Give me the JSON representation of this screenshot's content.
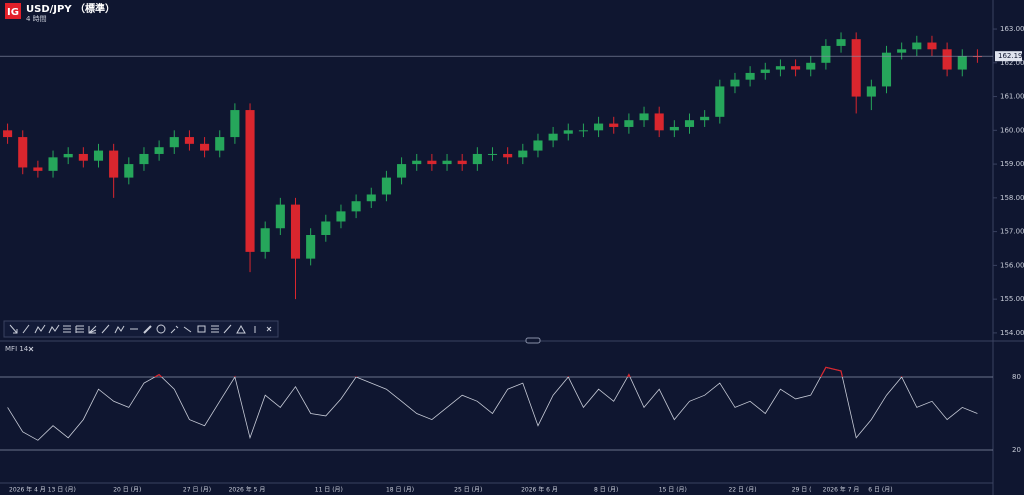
{
  "logo": "IG",
  "chart_data": [
    {
      "type": "candlestick",
      "title": "USD/JPY （標準）",
      "subtitle": "4 時間",
      "colors": {
        "up": "#26a65b",
        "down": "#d9262e"
      },
      "open": [
        160.0,
        159.8,
        158.9,
        158.8,
        159.2,
        159.3,
        159.1,
        159.4,
        158.6,
        159.0,
        159.3,
        159.5,
        159.8,
        159.6,
        159.4,
        159.8,
        160.6,
        156.4,
        157.1,
        157.8,
        156.2,
        156.9,
        157.3,
        157.6,
        157.9,
        158.1,
        158.6,
        159.0,
        159.1,
        159.0,
        159.1,
        159.0,
        159.3,
        159.3,
        159.2,
        159.4,
        159.7,
        159.9,
        160.0,
        160.0,
        160.2,
        160.1,
        160.3,
        160.5,
        160.0,
        160.1,
        160.3,
        160.4,
        161.3,
        161.5,
        161.7,
        161.8,
        161.9,
        161.8,
        162.0,
        162.5,
        162.7,
        161.0,
        161.3,
        162.3,
        162.4,
        162.6,
        162.4,
        161.8,
        162.2
      ],
      "high": [
        160.2,
        160.0,
        159.1,
        159.4,
        159.5,
        159.5,
        159.6,
        159.6,
        159.2,
        159.5,
        159.7,
        160.0,
        160.0,
        159.8,
        160.0,
        160.8,
        160.8,
        157.3,
        158.0,
        158.0,
        157.1,
        157.5,
        157.8,
        158.1,
        158.3,
        158.8,
        159.2,
        159.3,
        159.3,
        159.3,
        159.3,
        159.5,
        159.5,
        159.5,
        159.6,
        159.9,
        160.1,
        160.2,
        160.2,
        160.4,
        160.4,
        160.5,
        160.7,
        160.7,
        160.3,
        160.5,
        160.6,
        161.5,
        161.7,
        161.9,
        162.0,
        162.1,
        162.1,
        162.2,
        162.7,
        162.9,
        162.9,
        161.5,
        162.5,
        162.6,
        162.8,
        162.8,
        162.6,
        162.4,
        162.4
      ],
      "low": [
        159.6,
        158.7,
        158.6,
        158.6,
        159.0,
        158.9,
        158.9,
        158.0,
        158.4,
        158.8,
        159.1,
        159.3,
        159.4,
        159.2,
        159.2,
        159.6,
        155.8,
        156.2,
        156.9,
        155.0,
        156.0,
        156.7,
        157.1,
        157.4,
        157.7,
        157.9,
        158.4,
        158.8,
        158.8,
        158.8,
        158.8,
        158.8,
        159.1,
        159.0,
        159.0,
        159.2,
        159.5,
        159.7,
        159.8,
        159.8,
        159.9,
        159.9,
        160.1,
        159.8,
        159.8,
        159.9,
        160.1,
        160.2,
        161.1,
        161.3,
        161.5,
        161.6,
        161.6,
        161.6,
        161.8,
        162.3,
        160.5,
        160.6,
        161.1,
        162.1,
        162.2,
        162.2,
        161.6,
        161.6,
        162.0
      ],
      "close": [
        159.8,
        158.9,
        158.8,
        159.2,
        159.3,
        159.1,
        159.4,
        158.6,
        159.0,
        159.3,
        159.5,
        159.8,
        159.6,
        159.4,
        159.8,
        160.6,
        156.4,
        157.1,
        157.8,
        156.2,
        156.9,
        157.3,
        157.6,
        157.9,
        158.1,
        158.6,
        159.0,
        159.1,
        159.0,
        159.1,
        159.0,
        159.3,
        159.3,
        159.2,
        159.4,
        159.7,
        159.9,
        160.0,
        160.0,
        160.2,
        160.1,
        160.3,
        160.5,
        160.0,
        160.1,
        160.3,
        160.4,
        161.3,
        161.5,
        161.7,
        161.8,
        161.9,
        161.8,
        162.0,
        162.5,
        162.7,
        161.0,
        161.3,
        162.3,
        162.4,
        162.6,
        162.4,
        161.8,
        162.2,
        162.19
      ],
      "current_price": 162.196,
      "xlim": [
        -0.5,
        64.5
      ],
      "ylim": [
        153.79,
        163.86
      ],
      "yticks": [
        {
          "value": 163,
          "label": "163.000"
        },
        {
          "value": 162,
          "label": "162.000"
        },
        {
          "value": 161,
          "label": "161.000"
        },
        {
          "value": 160,
          "label": "160.000"
        },
        {
          "value": 159,
          "label": "159.000"
        },
        {
          "value": 158,
          "label": "158.000"
        },
        {
          "value": 157,
          "label": "157.000"
        },
        {
          "value": 156,
          "label": "156.000"
        },
        {
          "value": 155,
          "label": "155.000"
        },
        {
          "value": 154,
          "label": "154.000"
        }
      ]
    },
    {
      "type": "line",
      "title": "MFI 14",
      "color": "#c8ccd8",
      "overbought_color": "#d9262e",
      "values": [
        55,
        35,
        28,
        40,
        30,
        45,
        70,
        60,
        55,
        75,
        82,
        70,
        45,
        40,
        60,
        80,
        30,
        65,
        55,
        72,
        50,
        48,
        62,
        80,
        75,
        70,
        60,
        50,
        45,
        55,
        65,
        60,
        50,
        70,
        75,
        40,
        65,
        80,
        55,
        70,
        60,
        82,
        55,
        70,
        45,
        60,
        65,
        75,
        55,
        60,
        50,
        70,
        62,
        65,
        88,
        85,
        30,
        45,
        65,
        80,
        55,
        60,
        45,
        55,
        50
      ],
      "xlim": [
        -0.5,
        64.5
      ],
      "ylim": [
        -6.3,
        106.3
      ],
      "yticks": [
        80,
        20
      ],
      "xticks": [
        {
          "value": 2.3,
          "label": "2026 年 4 月 13 日 (月)"
        },
        {
          "value": 7.9,
          "label": "20 日 (月)"
        },
        {
          "value": 12.5,
          "label": "27 日 (月)"
        },
        {
          "value": 15.8,
          "label": "2026 年 5 月"
        },
        {
          "value": 21.2,
          "label": "11 日 (月)"
        },
        {
          "value": 25.9,
          "label": "18 日 (月)"
        },
        {
          "value": 30.4,
          "label": "25 日 (月)"
        },
        {
          "value": 35.1,
          "label": "2026 年 6 月"
        },
        {
          "value": 39.5,
          "label": "8 日 (月)"
        },
        {
          "value": 43.9,
          "label": "15 日 (月)"
        },
        {
          "value": 48.5,
          "label": "22 日 (月)"
        },
        {
          "value": 52.4,
          "label": "29 日 ("
        },
        {
          "value": 55.0,
          "label": "2026 年 7 月"
        },
        {
          "value": 57.6,
          "label": "6 日 (月)"
        }
      ]
    }
  ]
}
